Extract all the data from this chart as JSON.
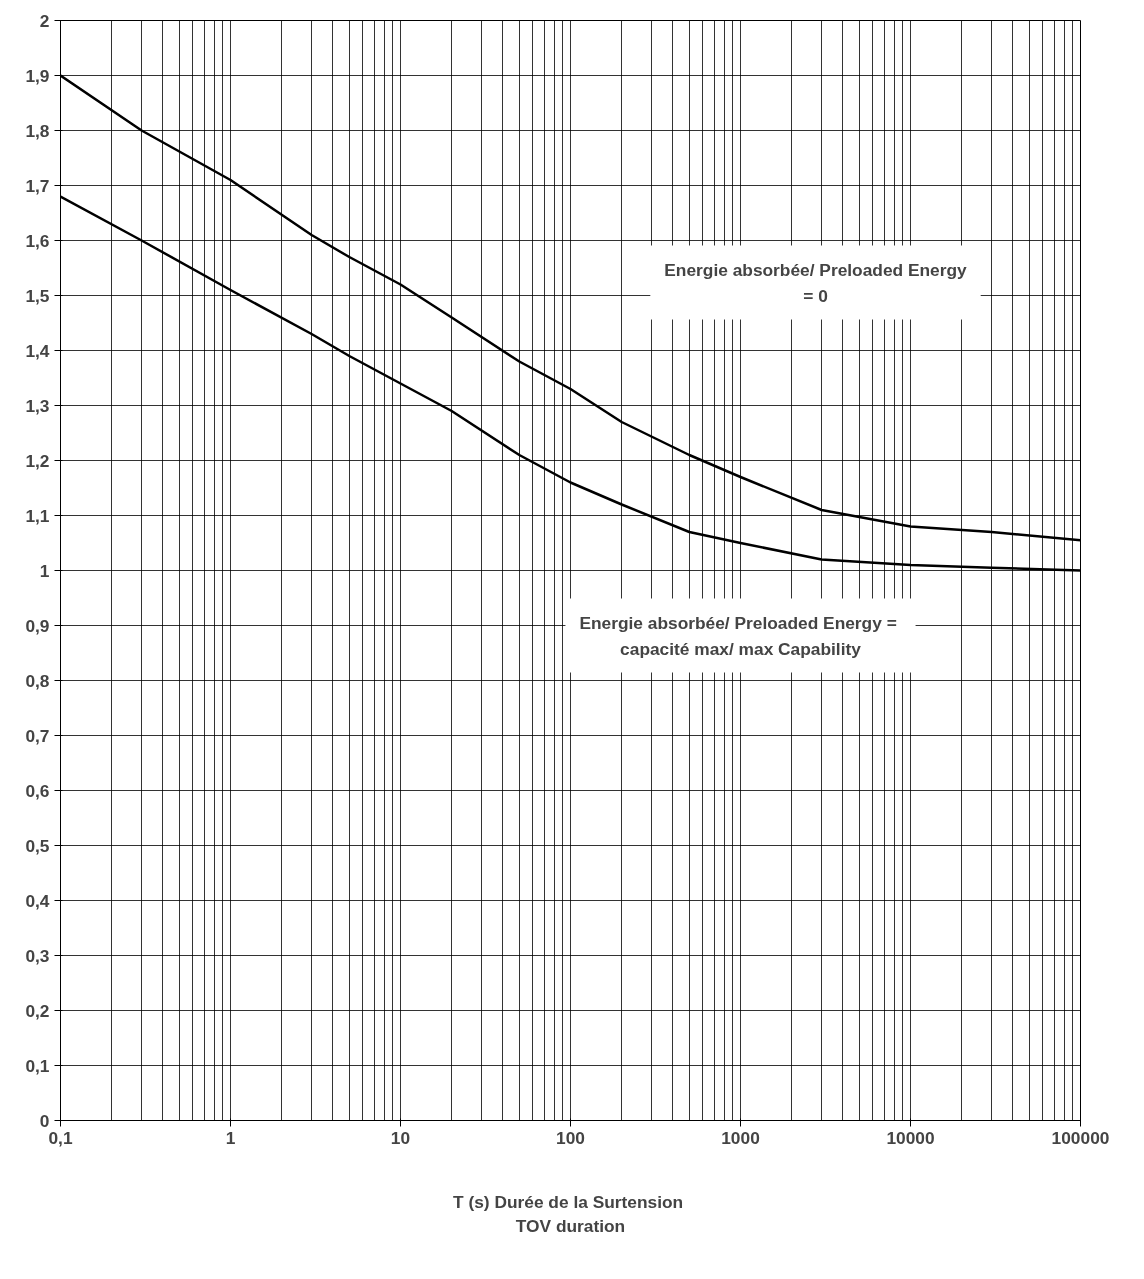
{
  "chart_data": {
    "type": "line",
    "x": [
      0.1,
      0.3,
      1,
      3,
      5,
      10,
      20,
      50,
      100,
      200,
      500,
      1000,
      3000,
      10000,
      30000,
      100000
    ],
    "series": [
      {
        "color": "#000000",
        "values": [
          1.9,
          1.8,
          1.71,
          1.61,
          1.57,
          1.52,
          1.46,
          1.38,
          1.33,
          1.27,
          1.21,
          1.17,
          1.11,
          1.08,
          1.07,
          1.055
        ]
      },
      {
        "color": "#000000",
        "values": [
          1.68,
          1.6,
          1.51,
          1.43,
          1.39,
          1.34,
          1.29,
          1.21,
          1.16,
          1.12,
          1.07,
          1.05,
          1.02,
          1.01,
          1.005,
          1.0
        ]
      }
    ],
    "xlabel": "T (s)  Durée de la Surtension\nTOV duration",
    "annotations": [
      "Energie absorbée/ Preloaded Energy\n= 0",
      "Energie absorbée/ Preloaded Energy  =\ncapacité max/ max Capability"
    ],
    "log": "x",
    "xlim": [
      0.1,
      100000
    ],
    "xticks": [
      {
        "value": 0.1,
        "label": "0,1"
      },
      1,
      10,
      100,
      1000,
      10000,
      100000
    ],
    "ylim": [
      0,
      2
    ],
    "yticks": [
      0,
      {
        "value": 0.1,
        "label": "0,1"
      },
      {
        "value": 0.2,
        "label": "0,2"
      },
      {
        "value": 0.3,
        "label": "0,3"
      },
      {
        "value": 0.4,
        "label": "0,4"
      },
      {
        "value": 0.5,
        "label": "0,5"
      },
      {
        "value": 0.6,
        "label": "0,6"
      },
      {
        "value": 0.7,
        "label": "0,7"
      },
      {
        "value": 0.8,
        "label": "0,8"
      },
      {
        "value": 0.9,
        "label": "0,9"
      },
      1,
      {
        "value": 1.1,
        "label": "1,1"
      },
      {
        "value": 1.2,
        "label": "1,2"
      },
      {
        "value": 1.3,
        "label": "1,3"
      },
      {
        "value": 1.4,
        "label": "1,4"
      },
      {
        "value": 1.5,
        "label": "1,5"
      },
      {
        "value": 1.6,
        "label": "1,6"
      },
      {
        "value": 1.7,
        "label": "1,7"
      },
      {
        "value": 1.8,
        "label": "1,8"
      },
      {
        "value": 1.9,
        "label": "1,9"
      },
      2
    ],
    "grid": true,
    "line_style": "solid"
  }
}
